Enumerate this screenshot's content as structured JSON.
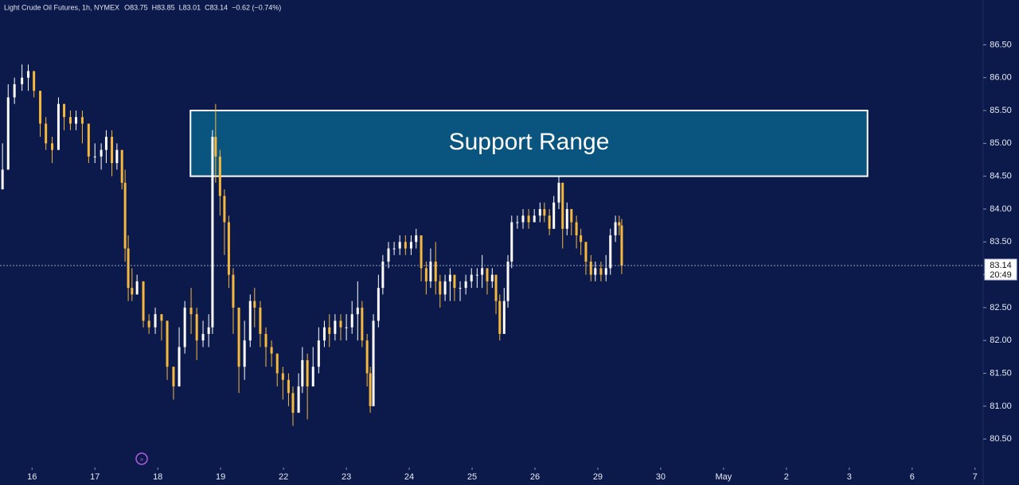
{
  "chart_data": {
    "type": "candlestick",
    "title": "Light Crude Oil Futures, 1h, NYMEX",
    "header_stats": [
      "O83.75",
      "H83.85",
      "L83.01",
      "C83.14",
      "−0.62 (−0.74%)"
    ],
    "up_color": "#ffffff",
    "down_color": "#f5b83d",
    "background": "#0c1a4b",
    "xlim": [
      -0.51,
      15.13
    ],
    "xticks": [
      {
        "value": 0,
        "label": "16"
      },
      {
        "value": 1,
        "label": "17"
      },
      {
        "value": 2,
        "label": "18"
      },
      {
        "value": 3,
        "label": "19"
      },
      {
        "value": 4,
        "label": "22"
      },
      {
        "value": 5,
        "label": "23"
      },
      {
        "value": 6,
        "label": "24"
      },
      {
        "value": 7,
        "label": "25"
      },
      {
        "value": 8,
        "label": "26"
      },
      {
        "value": 9,
        "label": "29"
      },
      {
        "value": 10,
        "label": "30"
      },
      {
        "value": 11,
        "label": "May"
      },
      {
        "value": 12,
        "label": "2"
      },
      {
        "value": 13,
        "label": "3"
      },
      {
        "value": 14,
        "label": "6"
      },
      {
        "value": 15,
        "label": "7"
      }
    ],
    "ylim": [
      80.26,
      86.94
    ],
    "yticks": [
      {
        "value": 80.5,
        "label": "80.50"
      },
      {
        "value": 81,
        "label": "81.00"
      },
      {
        "value": 81.5,
        "label": "81.50"
      },
      {
        "value": 82,
        "label": "82.00"
      },
      {
        "value": 82.5,
        "label": "82.50"
      },
      {
        "value": 83,
        "label": "83.00"
      },
      {
        "value": 83.5,
        "label": "83.50"
      },
      {
        "value": 84,
        "label": "84.00"
      },
      {
        "value": 84.5,
        "label": "84.50"
      },
      {
        "value": 85,
        "label": "85.00"
      },
      {
        "value": 85.5,
        "label": "85.50"
      },
      {
        "value": 86,
        "label": "86.00"
      },
      {
        "value": 86.5,
        "label": "86.50"
      }
    ],
    "x": [
      -0.47,
      -0.38,
      -0.28,
      -0.16,
      -0.06,
      0.03,
      0.13,
      0.22,
      0.32,
      0.42,
      0.51,
      0.61,
      0.7,
      0.8,
      0.9,
      1.0,
      1.1,
      1.18,
      1.27,
      1.35,
      1.43,
      1.48,
      1.53,
      1.59,
      1.67,
      1.77,
      1.86,
      1.96,
      2.06,
      2.15,
      2.25,
      2.34,
      2.43,
      2.53,
      2.62,
      2.72,
      2.81,
      2.87,
      2.92,
      2.99,
      3.06,
      3.13,
      3.2,
      3.29,
      3.38,
      3.47,
      3.54,
      3.63,
      3.72,
      3.81,
      3.9,
      3.99,
      4.08,
      4.15,
      4.24,
      4.3,
      4.38,
      4.47,
      4.56,
      4.65,
      4.73,
      4.82,
      4.91,
      5.0,
      5.09,
      5.18,
      5.25,
      5.33,
      5.38,
      5.43,
      5.51,
      5.58,
      5.67,
      5.76,
      5.85,
      5.94,
      6.03,
      6.11,
      6.19,
      6.27,
      6.34,
      6.42,
      6.49,
      6.57,
      6.65,
      6.72,
      6.81,
      6.9,
      6.99,
      7.08,
      7.16,
      7.24,
      7.32,
      7.38,
      7.44,
      7.51,
      7.57,
      7.63,
      7.72,
      7.81,
      7.9,
      7.99,
      8.08,
      8.15,
      8.23,
      8.3,
      8.38,
      8.44,
      8.51,
      8.58,
      8.66,
      8.73,
      8.81,
      8.89,
      8.96,
      9.05,
      9.13,
      9.2,
      9.28,
      9.34,
      9.38
    ],
    "open": [
      84.3,
      84.6,
      85.7,
      85.9,
      86.0,
      86.1,
      85.8,
      85.3,
      85.0,
      84.9,
      85.6,
      85.4,
      85.3,
      85.4,
      85.3,
      84.8,
      84.8,
      84.9,
      85.1,
      84.7,
      84.9,
      84.4,
      83.4,
      82.8,
      82.7,
      82.9,
      82.3,
      82.2,
      82.4,
      82.3,
      81.6,
      81.3,
      81.9,
      82.5,
      82.4,
      82.0,
      82.1,
      82.2,
      85.1,
      84.8,
      84.2,
      83.8,
      83.0,
      82.5,
      81.6,
      82.0,
      82.6,
      82.5,
      82.1,
      81.9,
      81.8,
      81.5,
      81.4,
      81.2,
      80.9,
      81.3,
      81.7,
      81.3,
      81.6,
      82.0,
      82.2,
      82.1,
      82.3,
      82.2,
      82.2,
      82.4,
      82.5,
      82.0,
      81.5,
      81.0,
      82.3,
      82.8,
      83.2,
      83.4,
      83.4,
      83.5,
      83.4,
      83.5,
      83.6,
      83.1,
      82.9,
      83.2,
      82.9,
      82.7,
      82.9,
      83.0,
      82.8,
      82.8,
      82.9,
      83.0,
      83.0,
      83.1,
      82.9,
      83.0,
      82.6,
      82.1,
      82.6,
      83.2,
      83.8,
      83.8,
      83.9,
      83.8,
      83.9,
      84.0,
      83.9,
      83.7,
      84.1,
      84.4,
      83.7,
      84.0,
      83.8,
      83.6,
      83.5,
      83.2,
      83.0,
      83.1,
      83.0,
      83.1,
      83.6,
      83.8,
      83.75
    ],
    "high": [
      85.0,
      85.9,
      86.0,
      86.2,
      86.2,
      86.1,
      85.8,
      85.4,
      85.1,
      85.7,
      85.6,
      85.5,
      85.5,
      85.5,
      85.3,
      85.0,
      85.0,
      85.2,
      85.2,
      85.0,
      84.9,
      84.6,
      83.6,
      83.1,
      83.0,
      82.9,
      82.4,
      82.5,
      82.4,
      82.3,
      81.6,
      82.2,
      82.6,
      82.8,
      82.5,
      82.3,
      82.4,
      85.2,
      85.6,
      84.9,
      84.3,
      83.9,
      83.1,
      82.5,
      82.3,
      82.7,
      82.8,
      82.6,
      82.2,
      82.0,
      81.8,
      81.6,
      81.5,
      81.3,
      81.5,
      81.9,
      81.8,
      81.9,
      82.2,
      82.3,
      82.4,
      82.4,
      82.4,
      82.4,
      82.6,
      82.9,
      82.6,
      82.1,
      81.6,
      82.4,
      83.0,
      83.3,
      83.5,
      83.5,
      83.6,
      83.6,
      83.6,
      83.7,
      83.6,
      83.2,
      83.4,
      83.5,
      83.0,
      83.0,
      83.1,
      83.0,
      82.9,
      83.0,
      83.1,
      83.1,
      83.3,
      83.1,
      83.1,
      83.0,
      82.7,
      82.8,
      83.3,
      83.9,
      83.9,
      84.0,
      84.0,
      84.0,
      84.1,
      84.1,
      84.0,
      84.2,
      84.5,
      84.4,
      84.1,
      84.0,
      83.9,
      83.7,
      83.5,
      83.3,
      83.2,
      83.2,
      83.3,
      83.7,
      83.9,
      83.9,
      83.85
    ],
    "low": [
      84.3,
      84.6,
      85.6,
      85.8,
      85.8,
      85.7,
      85.1,
      84.9,
      84.7,
      84.9,
      85.2,
      85.2,
      85.2,
      85.0,
      84.7,
      84.7,
      84.6,
      84.7,
      84.5,
      84.6,
      84.3,
      83.2,
      82.6,
      82.6,
      82.7,
      82.2,
      82.1,
      82.1,
      82.0,
      81.4,
      81.1,
      81.3,
      81.8,
      82.1,
      81.7,
      81.9,
      81.9,
      82.1,
      84.4,
      83.9,
      83.3,
      82.8,
      82.1,
      81.2,
      81.4,
      81.9,
      82.2,
      81.9,
      81.6,
      81.6,
      81.3,
      81.1,
      81.0,
      80.7,
      80.9,
      81.2,
      80.8,
      81.3,
      81.5,
      81.9,
      81.9,
      82.0,
      82.0,
      82.0,
      82.1,
      82.0,
      81.9,
      81.3,
      80.9,
      81.0,
      82.2,
      82.7,
      83.1,
      83.3,
      83.3,
      83.3,
      83.3,
      83.4,
      82.9,
      82.7,
      82.8,
      82.7,
      82.5,
      82.6,
      82.6,
      82.6,
      82.6,
      82.7,
      82.8,
      82.8,
      82.8,
      82.7,
      82.8,
      82.4,
      82.0,
      82.1,
      82.5,
      83.1,
      83.7,
      83.7,
      83.7,
      83.8,
      83.8,
      83.8,
      83.6,
      83.7,
      84.0,
      83.4,
      83.6,
      83.6,
      83.4,
      83.3,
      83.0,
      82.9,
      82.9,
      82.9,
      82.9,
      83.0,
      83.5,
      83.6,
      83.01
    ],
    "close": [
      84.6,
      85.7,
      85.9,
      86.0,
      86.1,
      85.8,
      85.3,
      85.0,
      84.9,
      85.6,
      85.4,
      85.3,
      85.4,
      85.3,
      84.8,
      84.8,
      84.9,
      85.1,
      84.7,
      84.9,
      84.4,
      83.4,
      82.8,
      82.7,
      82.9,
      82.3,
      82.2,
      82.4,
      82.3,
      81.6,
      81.3,
      81.9,
      82.5,
      82.4,
      82.0,
      82.1,
      82.2,
      85.1,
      84.8,
      84.2,
      83.8,
      83.0,
      82.5,
      81.6,
      82.0,
      82.6,
      82.5,
      82.1,
      81.9,
      81.8,
      81.5,
      81.4,
      81.2,
      80.9,
      81.3,
      81.7,
      81.3,
      81.6,
      82.0,
      82.2,
      82.1,
      82.3,
      82.2,
      82.2,
      82.4,
      82.5,
      82.0,
      81.5,
      81.0,
      82.3,
      82.8,
      83.2,
      83.4,
      83.4,
      83.5,
      83.4,
      83.5,
      83.6,
      83.1,
      82.9,
      83.2,
      82.9,
      82.7,
      82.9,
      83.0,
      82.8,
      82.8,
      82.9,
      83.0,
      83.0,
      83.1,
      82.9,
      83.0,
      82.6,
      82.1,
      82.6,
      83.2,
      83.8,
      83.8,
      83.9,
      83.8,
      83.9,
      84.0,
      83.9,
      83.7,
      84.1,
      84.4,
      83.7,
      84.0,
      83.8,
      83.6,
      83.5,
      83.2,
      83.0,
      83.1,
      83.0,
      83.1,
      83.6,
      83.8,
      83.75,
      83.14
    ],
    "last_price": {
      "value": 83.14,
      "label": "83.14",
      "countdown": "20:49"
    },
    "annotation": {
      "text": "Support Range",
      "y0": 84.5,
      "y1": 85.5,
      "x0": 2.52,
      "x1": 13.29,
      "color": "#0a5580"
    }
  }
}
